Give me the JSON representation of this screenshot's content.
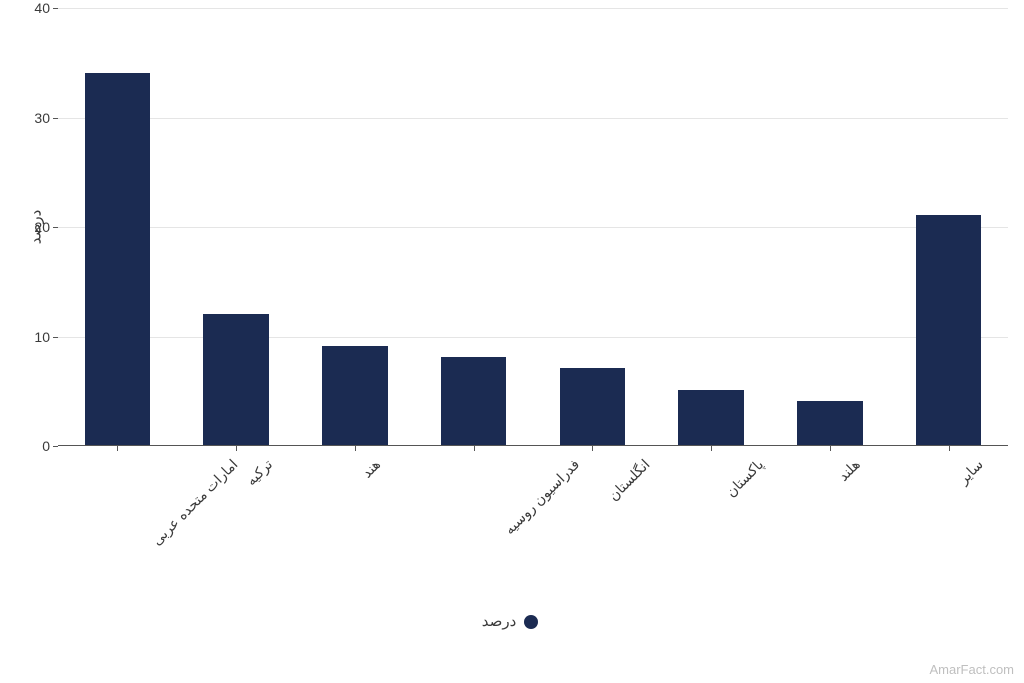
{
  "chart": {
    "type": "bar",
    "y_axis_title": "درصد",
    "ylim": [
      0,
      40
    ],
    "ytick_step": 10,
    "yticks": [
      0,
      10,
      20,
      30,
      40
    ],
    "categories": [
      "امارات متحده عربی",
      "ترکیه",
      "هند",
      "فدراسیون روسیه",
      "انگلستان",
      "پاکستان",
      "هلند",
      "سایر"
    ],
    "values": [
      34,
      12,
      9,
      8,
      7,
      5,
      4,
      21
    ],
    "bar_color": "#1b2b52",
    "bar_width_ratio": 0.55,
    "background_color": "#ffffff",
    "grid_color": "#e5e5e5",
    "axis_color": "#555555",
    "tick_label_fontsize": 14,
    "axis_title_fontsize": 15,
    "legend_label": "درصد",
    "legend_fontsize": 15,
    "legend_dot_color": "#1b2b52"
  },
  "watermark": "AmarFact.com"
}
